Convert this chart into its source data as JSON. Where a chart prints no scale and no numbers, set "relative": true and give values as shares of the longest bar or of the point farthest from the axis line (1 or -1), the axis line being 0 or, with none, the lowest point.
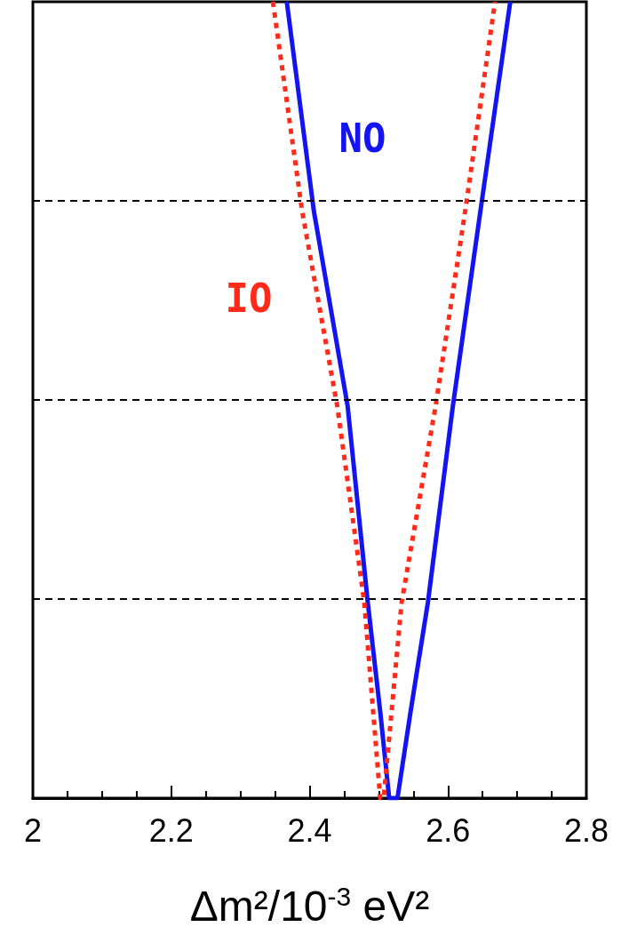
{
  "chart_data": {
    "type": "line",
    "relative": true,
    "xlabel": "Δm²/10$^{-3}$ eV²",
    "xlim": [
      2,
      2.8
    ],
    "xticks": [
      2,
      2.2,
      2.4,
      2.6,
      2.8
    ],
    "grid": false,
    "marker": "none",
    "series": [
      {
        "name": "NO",
        "color": "#1414f0",
        "line_style": "solid",
        "x": [
          2.367,
          2.406,
          2.455,
          2.484,
          2.502,
          2.515,
          2.521,
          2.527,
          2.546,
          2.571,
          2.607,
          2.647,
          2.69
        ],
        "values": [
          1,
          0.738,
          0.492,
          0.246,
          0.109,
          0,
          0,
          0,
          0.109,
          0.246,
          0.492,
          0.738,
          1
        ]
      },
      {
        "name": "IO",
        "color": "#ff2a1a",
        "line_style": "dashed",
        "x": [
          2.347,
          2.389,
          2.44,
          2.479,
          2.502,
          2.505,
          2.507,
          2.533,
          2.582,
          2.625,
          2.668
        ],
        "values": [
          1,
          0.738,
          0.492,
          0.246,
          0,
          0,
          0,
          0.246,
          0.492,
          0.738,
          1
        ]
      }
    ],
    "ref_lines": [
      {
        "axis": "y",
        "value": 0.75,
        "color": "#000000",
        "line_style": "dashed"
      },
      {
        "axis": "y",
        "value": 0.5,
        "color": "#000000",
        "line_style": "dashed"
      },
      {
        "axis": "y",
        "value": 0.25,
        "color": "#000000",
        "line_style": "dashed"
      }
    ]
  }
}
